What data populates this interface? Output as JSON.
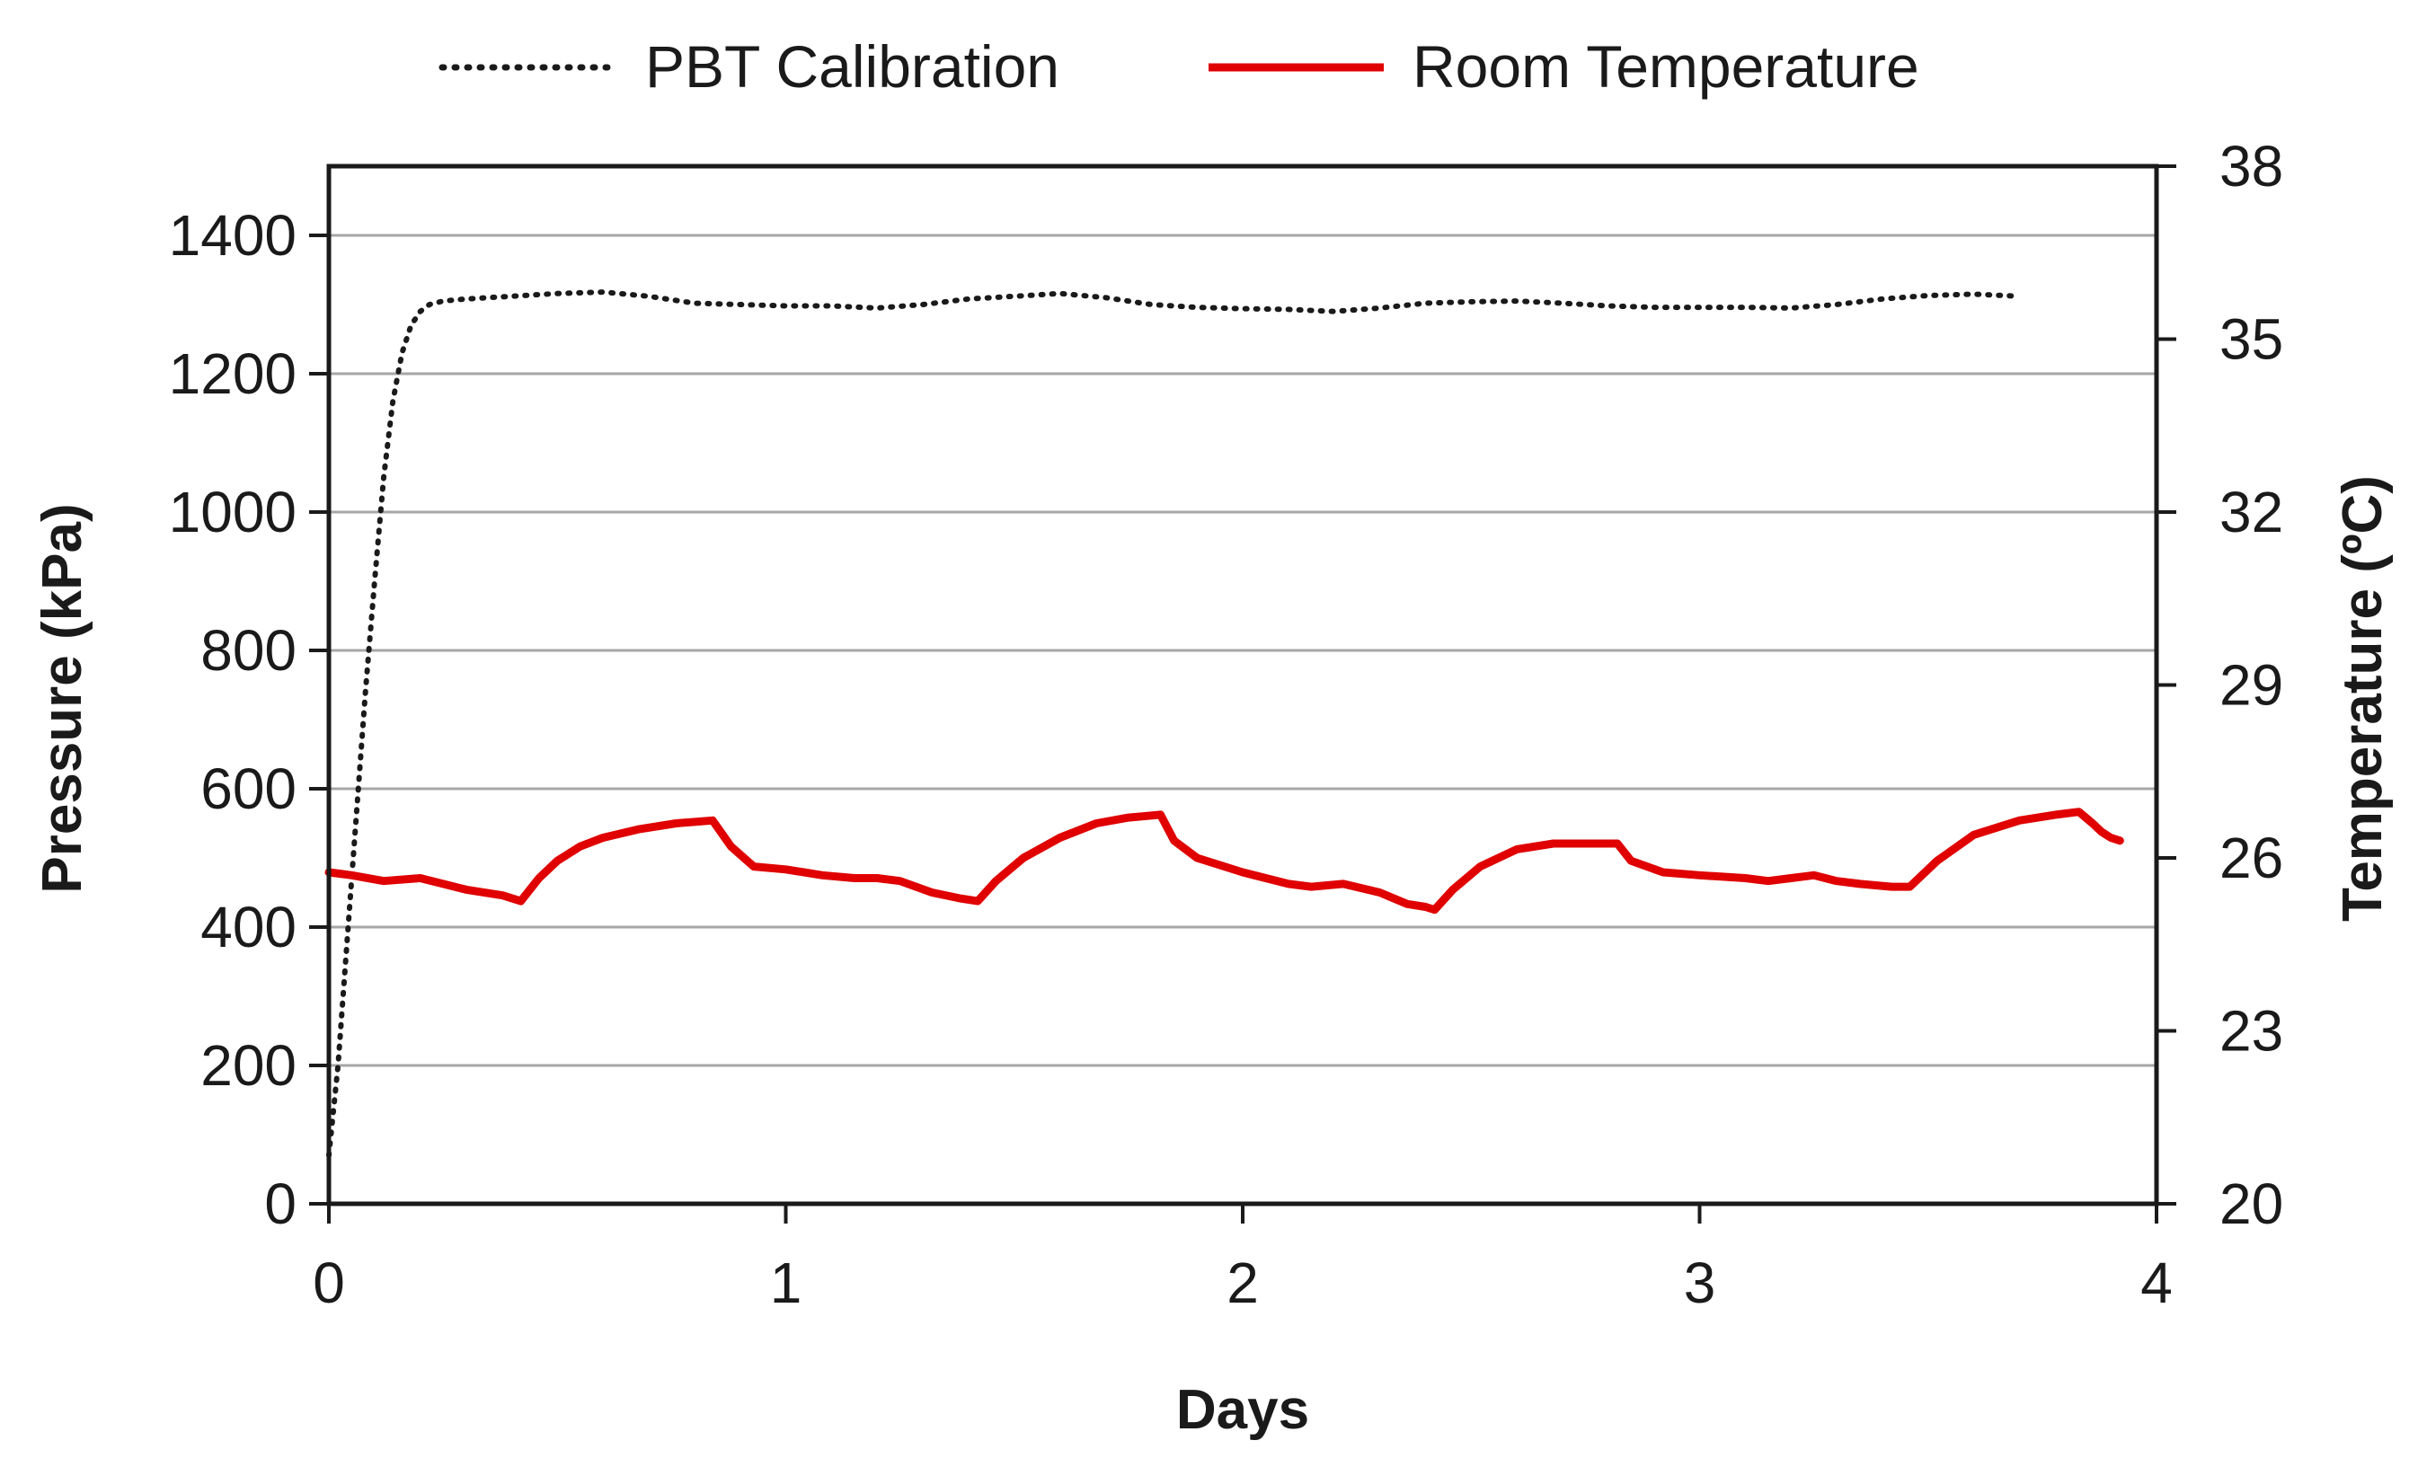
{
  "chart_data": {
    "type": "line",
    "title": "",
    "xlabel": "Days",
    "ylabel": "Pressure (kPa)",
    "y2label": "Temperature (ºC)",
    "xlim": [
      0,
      4
    ],
    "ylim": [
      0,
      1500
    ],
    "y2lim": [
      20,
      38
    ],
    "x_ticks": [
      0,
      1,
      2,
      3,
      4
    ],
    "y_ticks": [
      0,
      200,
      400,
      600,
      800,
      1000,
      1200,
      1400
    ],
    "y2_ticks": [
      20,
      23,
      26,
      29,
      32,
      35,
      38
    ],
    "x_tick_labels": [
      "0",
      "1",
      "2",
      "3",
      "4"
    ],
    "y_tick_labels": [
      "0",
      "200",
      "400",
      "600",
      "800",
      "1000",
      "1200",
      "1400"
    ],
    "y2_tick_labels": [
      "20",
      "23",
      "26",
      "29",
      "32",
      "35",
      "38"
    ],
    "grid": true,
    "legend_position": "top",
    "series": [
      {
        "name": "PBT Calibration",
        "axis": "left",
        "style": "dotted",
        "color": "#1a1a1a",
        "x": [
          0.0,
          0.02,
          0.04,
          0.06,
          0.08,
          0.1,
          0.12,
          0.14,
          0.16,
          0.18,
          0.2,
          0.22,
          0.25,
          0.3,
          0.4,
          0.5,
          0.6,
          0.7,
          0.8,
          0.9,
          1.0,
          1.1,
          1.2,
          1.3,
          1.4,
          1.5,
          1.6,
          1.7,
          1.8,
          1.9,
          2.0,
          2.1,
          2.2,
          2.3,
          2.4,
          2.5,
          2.6,
          2.7,
          2.8,
          2.9,
          3.0,
          3.1,
          3.2,
          3.3,
          3.4,
          3.5,
          3.6,
          3.7
        ],
        "y": [
          70,
          200,
          380,
          560,
          740,
          900,
          1050,
          1160,
          1230,
          1270,
          1290,
          1300,
          1305,
          1308,
          1312,
          1316,
          1318,
          1312,
          1302,
          1300,
          1298,
          1298,
          1295,
          1300,
          1308,
          1312,
          1316,
          1310,
          1300,
          1296,
          1294,
          1293,
          1290,
          1295,
          1302,
          1304,
          1305,
          1302,
          1298,
          1296,
          1296,
          1296,
          1295,
          1300,
          1308,
          1313,
          1315,
          1312
        ]
      },
      {
        "name": "Room Temperature",
        "axis": "right",
        "style": "solid",
        "color": "#e00000",
        "x": [
          0.0,
          0.05,
          0.12,
          0.2,
          0.3,
          0.38,
          0.42,
          0.46,
          0.5,
          0.55,
          0.6,
          0.68,
          0.76,
          0.84,
          0.88,
          0.93,
          1.0,
          1.08,
          1.15,
          1.2,
          1.25,
          1.32,
          1.38,
          1.42,
          1.46,
          1.52,
          1.6,
          1.68,
          1.75,
          1.82,
          1.85,
          1.9,
          2.0,
          2.1,
          2.15,
          2.22,
          2.3,
          2.36,
          2.4,
          2.42,
          2.46,
          2.52,
          2.6,
          2.68,
          2.75,
          2.82,
          2.85,
          2.92,
          3.0,
          3.1,
          3.15,
          3.2,
          3.25,
          3.3,
          3.35,
          3.42,
          3.46,
          3.52,
          3.6,
          3.7,
          3.78,
          3.83,
          3.86,
          3.88,
          3.9,
          3.92
        ],
        "y": [
          25.75,
          25.7,
          25.6,
          25.65,
          25.45,
          25.35,
          25.25,
          25.65,
          25.95,
          26.2,
          26.35,
          26.5,
          26.6,
          26.65,
          26.2,
          25.85,
          25.8,
          25.7,
          25.65,
          25.65,
          25.6,
          25.4,
          25.3,
          25.25,
          25.6,
          26.0,
          26.35,
          26.6,
          26.7,
          26.75,
          26.3,
          26.0,
          25.75,
          25.55,
          25.5,
          25.55,
          25.4,
          25.2,
          25.15,
          25.1,
          25.45,
          25.85,
          26.15,
          26.25,
          26.25,
          26.25,
          25.95,
          25.75,
          25.7,
          25.65,
          25.6,
          25.65,
          25.7,
          25.6,
          25.55,
          25.5,
          25.5,
          25.95,
          26.4,
          26.65,
          26.75,
          26.8,
          26.6,
          26.45,
          26.35,
          26.3
        ]
      }
    ]
  }
}
